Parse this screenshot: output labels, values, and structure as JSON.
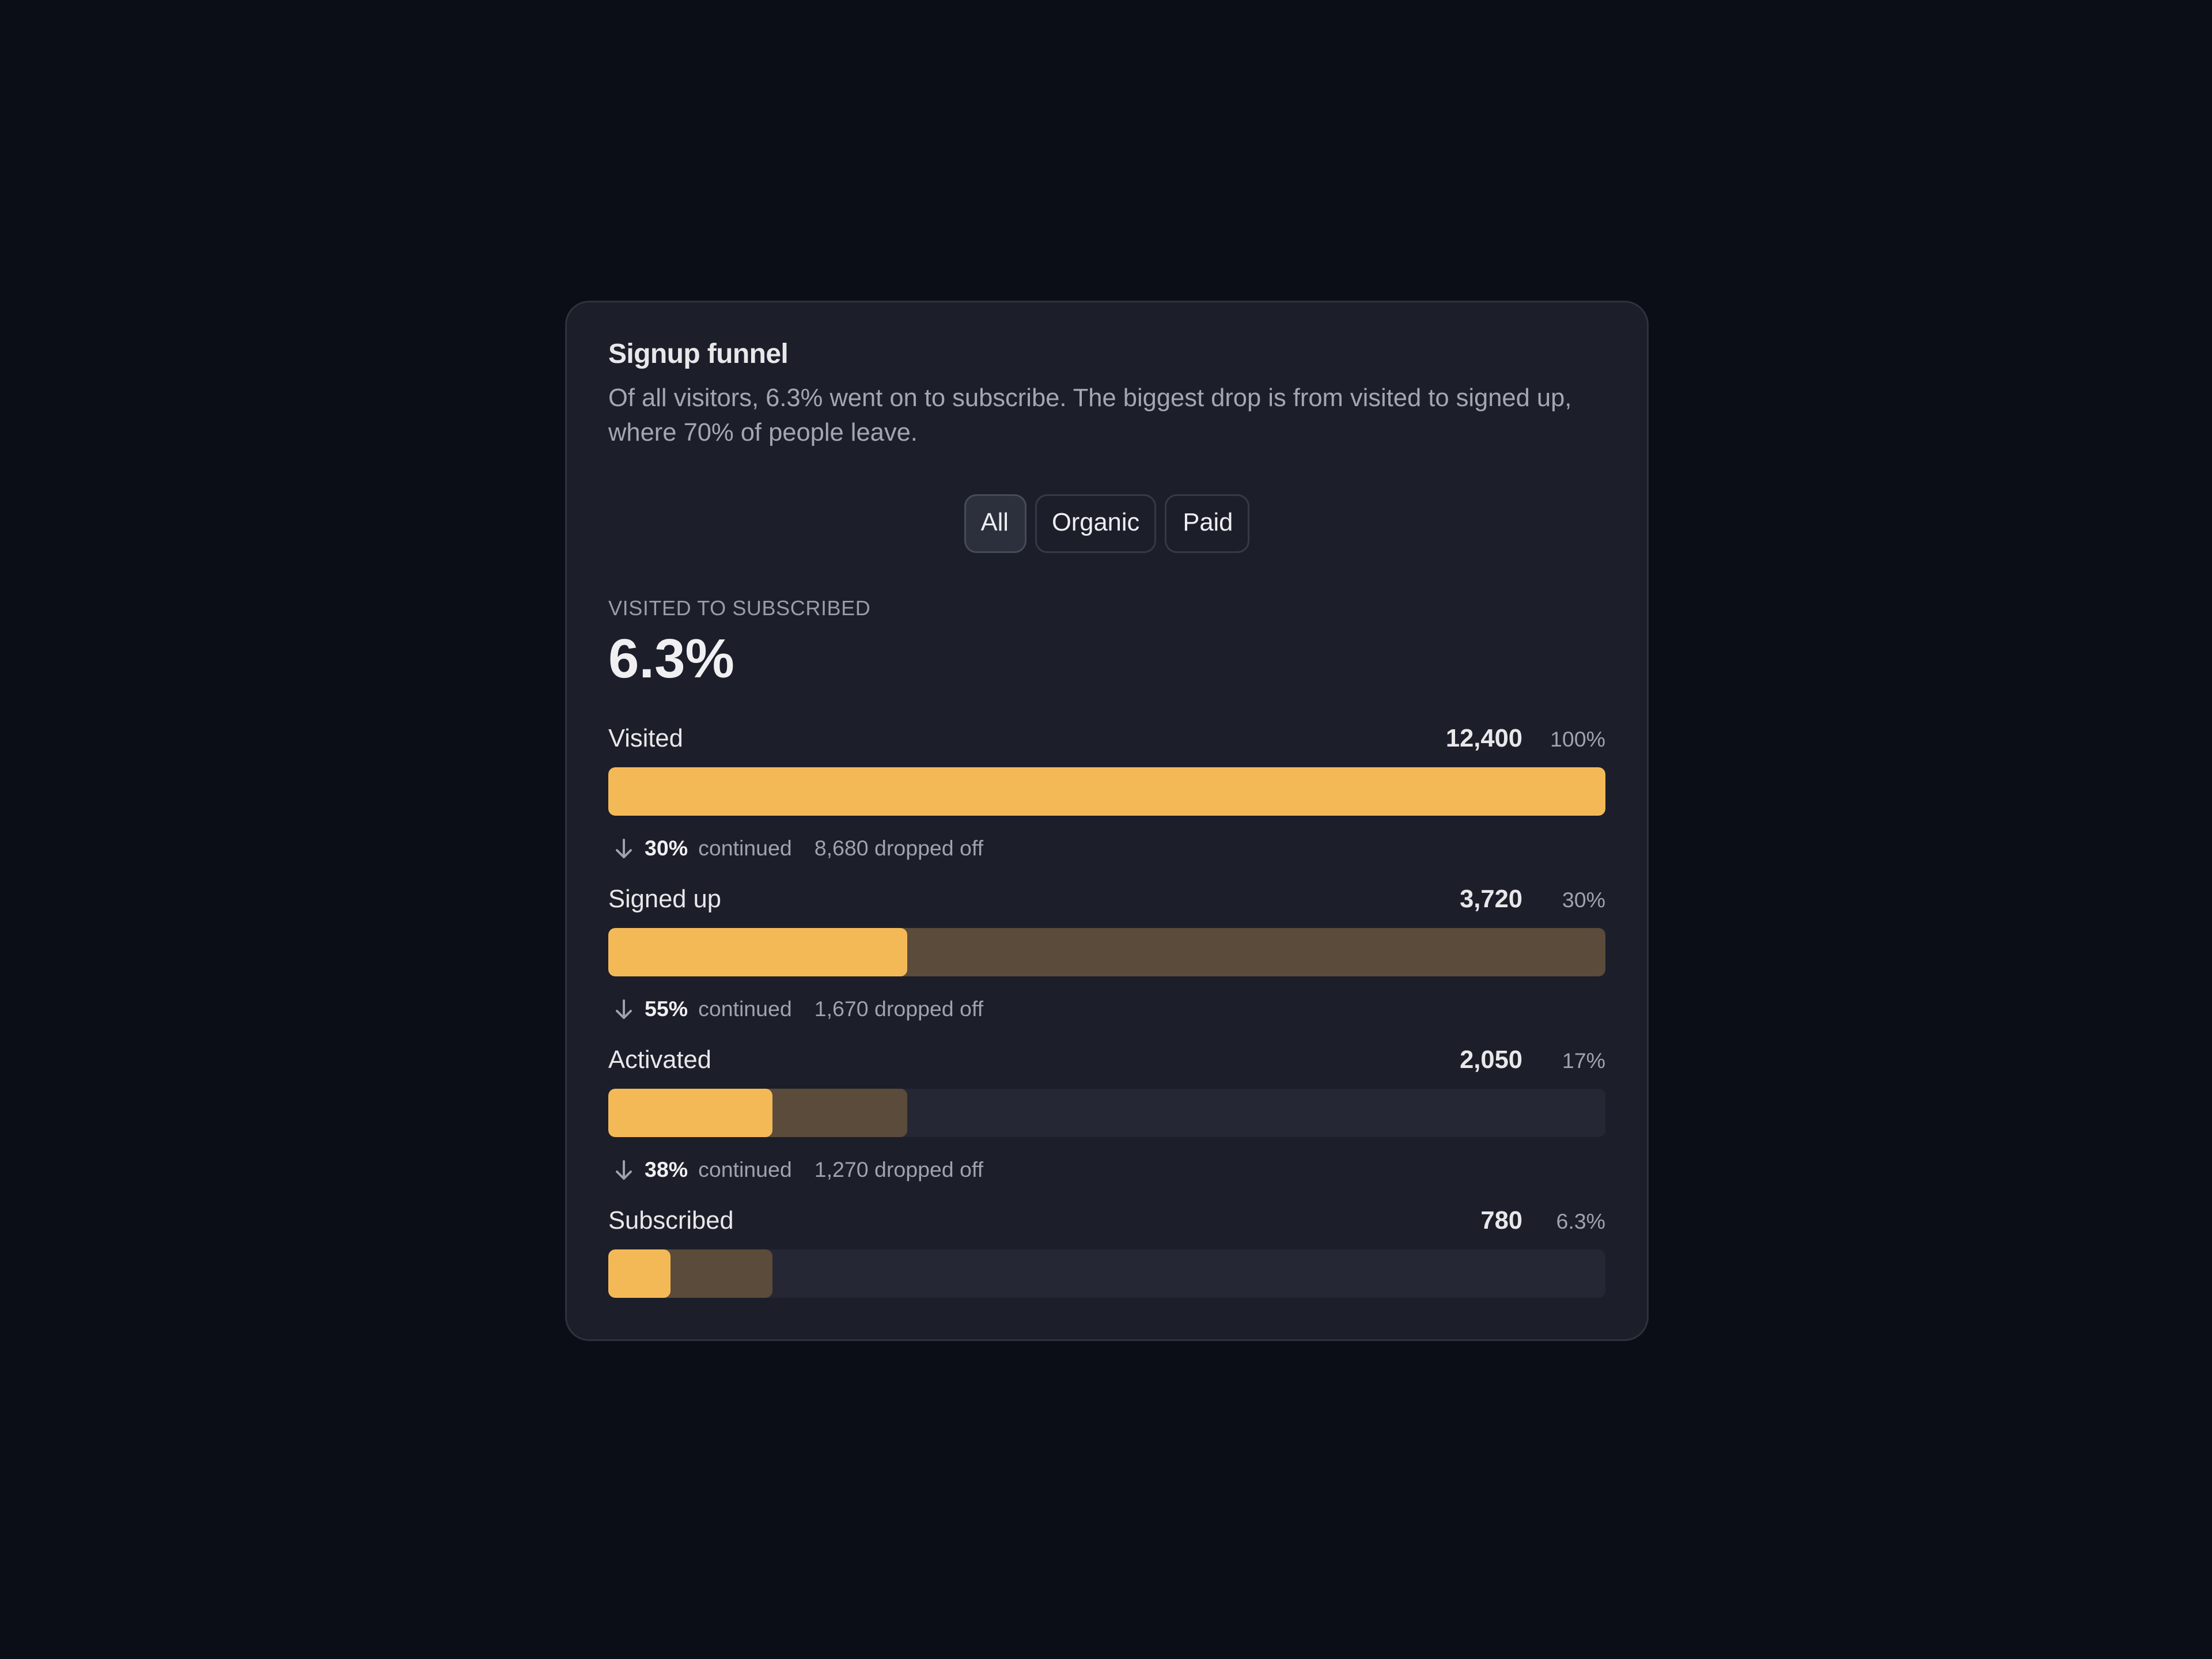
{
  "header": {
    "title": "Signup funnel",
    "description": "Of all visitors, 6.3% went on to subscribe. The biggest drop is from visited to signed up, where 70% of people leave."
  },
  "filters": [
    "All",
    "Organic",
    "Paid"
  ],
  "kpi": {
    "label": "VISITED TO SUBSCRIBED",
    "value": "6.3%"
  },
  "stages": [
    {
      "name": "Visited",
      "count": 12400,
      "count_label": "12,400",
      "share": "100%"
    },
    {
      "name": "Signed up",
      "count": 3720,
      "count_label": "3,720",
      "share": "30%"
    },
    {
      "name": "Activated",
      "count": 2050,
      "count_label": "2,050",
      "share": "17%"
    },
    {
      "name": "Subscribed",
      "count": 780,
      "count_label": "780",
      "share": "6.3%"
    }
  ],
  "transitions": [
    {
      "continued": "30%",
      "continued_text": "continued",
      "dropped": "8,680 dropped off"
    },
    {
      "continued": "55%",
      "continued_text": "continued",
      "dropped": "1,670 dropped off"
    },
    {
      "continued": "38%",
      "continued_text": "continued",
      "dropped": "1,270 dropped off"
    }
  ]
}
